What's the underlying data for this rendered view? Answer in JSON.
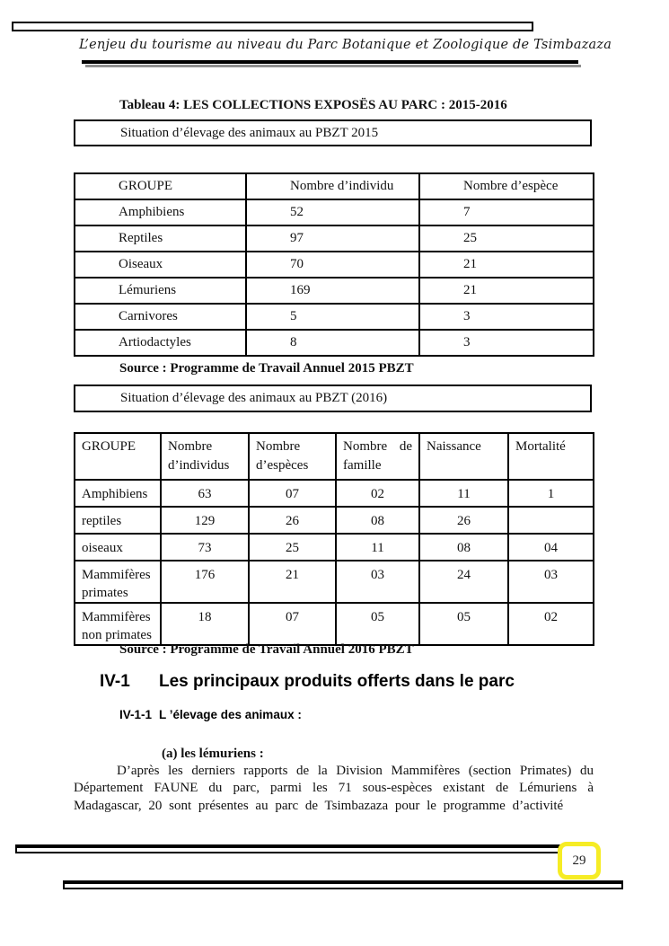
{
  "header": {
    "running_title": "L’enjeu du tourisme au niveau du Parc Botanique et Zoologique de Tsimbazaza"
  },
  "content": {
    "table_caption": "Tableau 4: LES COLLECTIONS EXPOSËS AU PARC : 2015-2016",
    "box_2015": "Situation d’élevage des animaux au PBZT 2015",
    "table_2015": {
      "headers": [
        "GROUPE",
        "Nombre d’individu",
        "Nombre d’espèce"
      ],
      "rows": [
        [
          "Amphibiens",
          "52",
          "7"
        ],
        [
          "Reptiles",
          "97",
          "25"
        ],
        [
          "Oiseaux",
          "70",
          "21"
        ],
        [
          "Lémuriens",
          "169",
          "21"
        ],
        [
          "Carnivores",
          "5",
          "3"
        ],
        [
          "Artiodactyles",
          "8",
          "3"
        ]
      ]
    },
    "source_2015": "Source : Programme de Travail Annuel 2015 PBZT",
    "box_2016": "Situation d’élevage des animaux au PBZT (2016)",
    "table_2016": {
      "headers": [
        "GROUPE",
        "Nombre d’individus",
        "Nombre d’espèces",
        "Nombre de famille",
        "Naissance",
        "Mortalité"
      ],
      "rows": [
        [
          "Amphibiens",
          "63",
          "07",
          "02",
          "11",
          "1"
        ],
        [
          "reptiles",
          "129",
          "26",
          "08",
          "26",
          ""
        ],
        [
          "oiseaux",
          "73",
          "25",
          "11",
          "08",
          "04"
        ],
        [
          "Mammifères primates",
          "176",
          "21",
          "03",
          "24",
          "03"
        ],
        [
          "Mammifères non primates",
          "18",
          "07",
          "05",
          "05",
          "02"
        ]
      ]
    },
    "source_2016": "Source : Programme de Travail Annuel 2016 PBZT",
    "section": {
      "number": "IV-1",
      "title": "Les principaux produits offerts dans le parc"
    },
    "subsection": {
      "number": "IV-1-1",
      "title": "L ’élevage des animaux :"
    },
    "item_a": "(a) les lémuriens :",
    "paragraph": "D’après les derniers rapports de la Division Mammifères (section Primates) du Département FAUNE du parc, parmi les 71 sous-espèces existant de Lémuriens à Madagascar, 20 sont présentes au parc de Tsimbazaza pour le programme d’activité"
  },
  "footer": {
    "page_number": "29"
  }
}
